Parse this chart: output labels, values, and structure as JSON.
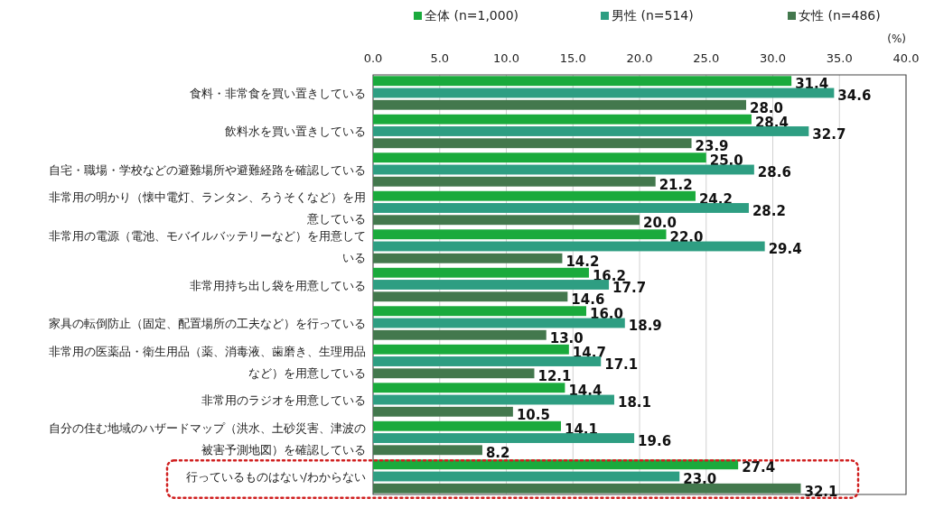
{
  "chart_data": {
    "type": "bar",
    "orientation": "horizontal",
    "categories": [
      "食料・非常食を買い置きしている",
      "飲料水を買い置きしている",
      "自宅・職場・学校などの避難場所や避難経路を確認している",
      "非常用の明かり（懐中電灯、ランタン、ろうそくなど）を用意している",
      "非常用の電源（電池、モバイルバッテリーなど）を用意している",
      "非常用持ち出し袋を用意している",
      "家具の転倒防止（固定、配置場所の工夫など）を行っている",
      "非常用の医薬品・衛生用品（薬、消毒液、歯磨き、生理用品など）を用意している",
      "非常用のラジオを用意している",
      "自分の住む地域のハザードマップ（洪水、土砂災害、津波の被害予測地図）を確認している",
      "行っているものはない/わからない"
    ],
    "series": [
      {
        "name": "全体 (n=1,000)",
        "color": "#1aaa3c",
        "values": [
          31.4,
          28.4,
          25.0,
          24.2,
          22.0,
          16.2,
          16.0,
          14.7,
          14.4,
          14.1,
          27.4
        ],
        "value_labels": [
          "31.4",
          "28.4",
          "25.0",
          "24.2",
          "22.0",
          "16.2",
          "16.0",
          "14.7",
          "14.4",
          "14.1",
          "27.4"
        ]
      },
      {
        "name": "男性 (n=514)",
        "color": "#2e9e82",
        "values": [
          34.6,
          32.7,
          28.6,
          28.2,
          29.4,
          17.7,
          18.9,
          17.1,
          18.1,
          19.6,
          23.0
        ],
        "value_labels": [
          "34.6",
          "32.7",
          "28.6",
          "28.2",
          "29.4",
          "17.7",
          "18.9",
          "17.1",
          "18.1",
          "19.6",
          "23.0"
        ]
      },
      {
        "name": "女性 (n=486)",
        "color": "#43784d",
        "values": [
          28.0,
          23.9,
          21.2,
          20.0,
          14.2,
          14.6,
          13.0,
          12.1,
          10.5,
          8.2,
          32.1
        ],
        "value_labels": [
          "28.0",
          "23.9",
          "21.2",
          "20.0",
          "14.2",
          "14.6",
          "13.0",
          "12.1",
          "10.5",
          "8.2",
          "32.1"
        ]
      }
    ],
    "xlim": [
      0,
      40
    ],
    "xticks": [
      {
        "value": 0,
        "label": "0.0"
      },
      {
        "value": 5,
        "label": "5.0"
      },
      {
        "value": 10,
        "label": "10.0"
      },
      {
        "value": 15,
        "label": "15.0"
      },
      {
        "value": 20,
        "label": "20.0"
      },
      {
        "value": 25,
        "label": "25.0"
      },
      {
        "value": 30,
        "label": "30.0"
      },
      {
        "value": 35,
        "label": "35.0"
      },
      {
        "value": 40,
        "label": "40.0"
      }
    ],
    "grid": "x",
    "legend": "top",
    "annotations": [
      "(%)"
    ]
  }
}
